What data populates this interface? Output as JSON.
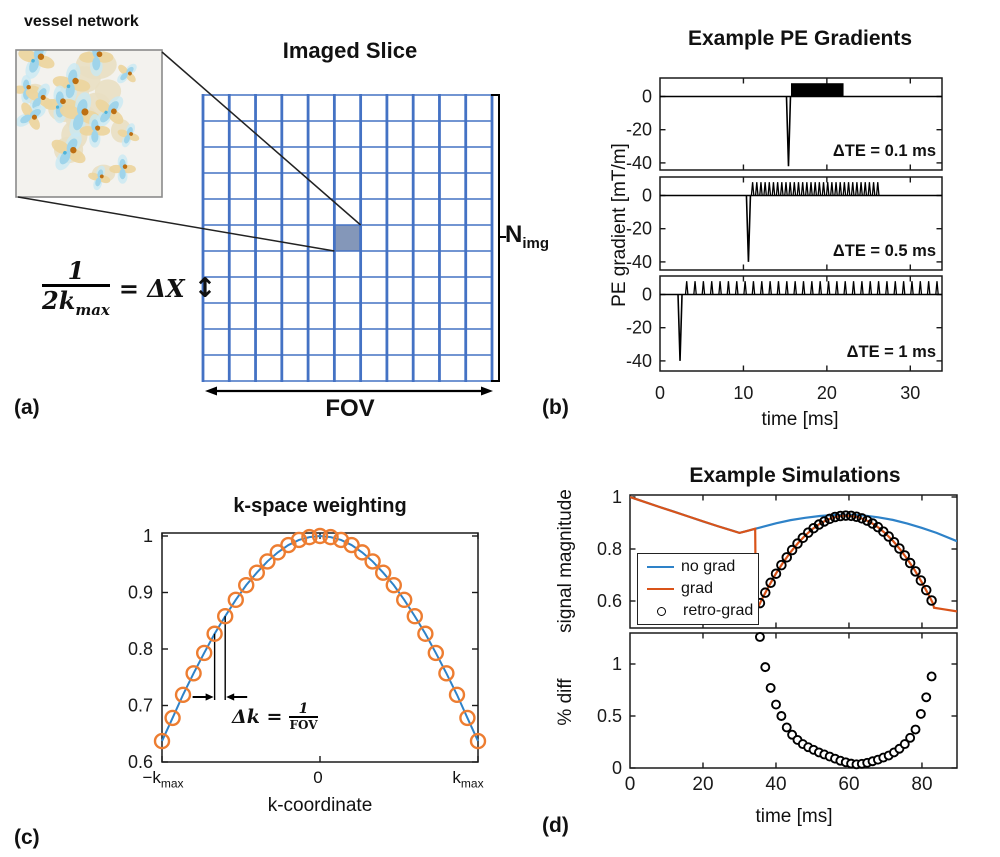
{
  "figure": {
    "panel_labels": {
      "a": "(a)",
      "b": "(b)",
      "c": "(c)",
      "d": "(d)"
    }
  },
  "panel_a": {
    "inset_label": "vessel network",
    "title": "Imaged Slice",
    "fov_label": "FOV",
    "n_img": {
      "base": "N",
      "sub": "img"
    },
    "equation": {
      "numerator": "1",
      "denominator_base": "2k",
      "denominator_sub": "max",
      "rhs": "= ΔX",
      "arrow": "↕"
    },
    "grid": {
      "rows": 11,
      "cols": 11,
      "highlight_cell": {
        "row": 6,
        "col": 6
      },
      "line_color": "#4472C4",
      "cell_fill": "#8497B9"
    },
    "inset_colors": {
      "background": "#f3f2ee",
      "network": "#e9dfc2",
      "petal_blue": "#9fd4ea",
      "petal_blue_halo": "#c9e9f3",
      "petal_tan": "#ecd59f",
      "dot_brown": "#bd6f12",
      "dot_blue": "#4fb3d9"
    },
    "vessels": [
      [
        0.14,
        0.06,
        1.0,
        20
      ],
      [
        0.55,
        0.05,
        0.9,
        0
      ],
      [
        0.76,
        0.16,
        0.6,
        45
      ],
      [
        0.38,
        0.23,
        1.0,
        10
      ],
      [
        0.07,
        0.27,
        0.7,
        0
      ],
      [
        0.16,
        0.33,
        0.8,
        30
      ],
      [
        0.3,
        0.37,
        0.9,
        0
      ],
      [
        0.1,
        0.45,
        0.8,
        60
      ],
      [
        0.44,
        0.44,
        1.1,
        15
      ],
      [
        0.64,
        0.42,
        0.9,
        40
      ],
      [
        0.54,
        0.55,
        0.8,
        0
      ],
      [
        0.77,
        0.58,
        0.6,
        20
      ],
      [
        0.36,
        0.69,
        1.0,
        30
      ],
      [
        0.73,
        0.81,
        0.7,
        0
      ],
      [
        0.57,
        0.87,
        0.6,
        15
      ]
    ]
  },
  "chart_data": [
    {
      "id": "pe_gradients",
      "type": "line",
      "title": "Example PE Gradients",
      "xlabel": "time  [ms]",
      "ylabel": "PE gradient  [mT/m]",
      "xlim": [
        0,
        33.8
      ],
      "ylim": [
        -45,
        11
      ],
      "x_ticks": [
        0,
        10,
        20,
        30
      ],
      "y_ticks": [
        0,
        -20,
        -40
      ],
      "subplots": [
        {
          "annotation": "ΔTE = 0.1 ms",
          "prewinder": {
            "t": 15.4,
            "amp": -42
          },
          "train": {
            "start": 15.7,
            "end": 22.0,
            "period": 0.1,
            "amp": 8,
            "rendered_solid": true
          }
        },
        {
          "annotation": "ΔTE = 0.5 ms",
          "prewinder": {
            "t": 10.6,
            "amp": -40
          },
          "train": {
            "start": 11.1,
            "end": 26.2,
            "period": 0.5,
            "amp": 8,
            "rendered_solid": false
          }
        },
        {
          "annotation": "ΔTE = 1 ms",
          "prewinder": {
            "t": 2.4,
            "amp": -40
          },
          "train": {
            "start": 3.2,
            "end": 33.5,
            "period": 1.0,
            "amp": 8,
            "rendered_solid": false
          }
        }
      ]
    },
    {
      "id": "kspace_weighting",
      "type": "line+scatter",
      "title": "k-space weighting",
      "xlabel": "k-coordinate",
      "xlim": [
        -1,
        1
      ],
      "ylim": [
        0.6,
        1.005
      ],
      "y_ticks": [
        1,
        0.9,
        0.8,
        0.7,
        0.6
      ],
      "x_tick_labels": [
        {
          "base": "−k",
          "sub": "max"
        },
        {
          "base": "0",
          "sub": ""
        },
        {
          "base": "k",
          "sub": "max"
        }
      ],
      "line_color": "#2E82C8",
      "marker_color": "#ED7D31",
      "annotation": {
        "lhs": "Δk =",
        "num": "1",
        "den": "FOV"
      },
      "points_k": [
        -1,
        -0.933,
        -0.867,
        -0.8,
        -0.733,
        -0.667,
        -0.6,
        -0.533,
        -0.467,
        -0.4,
        -0.333,
        -0.267,
        -0.2,
        -0.133,
        -0.067,
        0,
        0.067,
        0.133,
        0.2,
        0.267,
        0.333,
        0.4,
        0.467,
        0.533,
        0.6,
        0.667,
        0.733,
        0.8,
        0.867,
        0.933,
        1
      ],
      "points_w": [
        0.637,
        0.678,
        0.719,
        0.757,
        0.793,
        0.827,
        0.858,
        0.887,
        0.913,
        0.935,
        0.955,
        0.971,
        0.984,
        0.993,
        0.998,
        1.0,
        0.998,
        0.993,
        0.984,
        0.971,
        0.955,
        0.935,
        0.913,
        0.887,
        0.858,
        0.827,
        0.793,
        0.757,
        0.719,
        0.678,
        0.637
      ]
    },
    {
      "id": "simulations",
      "type": "line+scatter",
      "title": "Example Simulations",
      "xlabel": "time  [ms]",
      "xlim": [
        0,
        89.6
      ],
      "x_ticks": [
        0,
        20,
        40,
        60,
        80
      ],
      "subplots": [
        {
          "ylabel": "signal magnitude",
          "ylim": [
            0.496,
            1.008
          ],
          "y_ticks": [
            1,
            0.8,
            0.6
          ],
          "legend": [
            {
              "label": "no grad",
              "color": "#2E82C8",
              "marker": "line"
            },
            {
              "label": "grad",
              "color": "#D95319",
              "marker": "line"
            },
            {
              "label": "retro-grad",
              "color": "#000000",
              "marker": "circle"
            }
          ],
          "series": {
            "no_grad": [
              [
                0,
                1.0
              ],
              [
                4,
                0.981
              ],
              [
                8,
                0.962
              ],
              [
                12,
                0.944
              ],
              [
                16,
                0.925
              ],
              [
                20,
                0.906
              ],
              [
                24,
                0.888
              ],
              [
                28,
                0.871
              ],
              [
                30,
                0.862
              ],
              [
                33,
                0.873
              ],
              [
                36,
                0.884
              ],
              [
                40,
                0.899
              ],
              [
                44,
                0.911
              ],
              [
                48,
                0.92
              ],
              [
                52,
                0.927
              ],
              [
                56,
                0.931
              ],
              [
                60,
                0.932
              ],
              [
                64,
                0.929
              ],
              [
                68,
                0.922
              ],
              [
                72,
                0.912
              ],
              [
                76,
                0.898
              ],
              [
                80,
                0.881
              ],
              [
                84,
                0.862
              ],
              [
                89.6,
                0.83
              ]
            ],
            "grad": [
              [
                0,
                1.0
              ],
              [
                8,
                0.962
              ],
              [
                16,
                0.925
              ],
              [
                24,
                0.888
              ],
              [
                30,
                0.862
              ],
              [
                32,
                0.869
              ],
              [
                34.3,
                0.878
              ],
              [
                34.5,
                0.556
              ],
              [
                36,
                0.603
              ],
              [
                38,
                0.656
              ],
              [
                40,
                0.706
              ],
              [
                42,
                0.749
              ],
              [
                44,
                0.788
              ],
              [
                46,
                0.822
              ],
              [
                48,
                0.852
              ],
              [
                50,
                0.877
              ],
              [
                52,
                0.897
              ],
              [
                54,
                0.912
              ],
              [
                56,
                0.922
              ],
              [
                58,
                0.928
              ],
              [
                60,
                0.928
              ],
              [
                62,
                0.924
              ],
              [
                64,
                0.915
              ],
              [
                66,
                0.902
              ],
              [
                68,
                0.883
              ],
              [
                70,
                0.86
              ],
              [
                72,
                0.832
              ],
              [
                74,
                0.799
              ],
              [
                76,
                0.761
              ],
              [
                78,
                0.719
              ],
              [
                80,
                0.671
              ],
              [
                82,
                0.619
              ],
              [
                83,
                0.591
              ],
              [
                83.3,
                0.574
              ],
              [
                86,
                0.568
              ],
              [
                89.6,
                0.56
              ]
            ],
            "retro_grad": {
              "t_start": 35.6,
              "t_step": 1.47,
              "values": [
                0.592,
                0.632,
                0.67,
                0.705,
                0.738,
                0.768,
                0.796,
                0.821,
                0.843,
                0.863,
                0.88,
                0.894,
                0.906,
                0.916,
                0.923,
                0.927,
                0.9285,
                0.9275,
                0.924,
                0.918,
                0.909,
                0.898,
                0.884,
                0.867,
                0.848,
                0.826,
                0.802,
                0.775,
                0.746,
                0.714,
                0.679,
                0.642,
                0.602
              ]
            }
          }
        },
        {
          "ylabel": "% diff",
          "ylim": [
            0,
            1.3
          ],
          "y_ticks": [
            0,
            0.5,
            1
          ],
          "points": {
            "t_start": 35.6,
            "t_step": 1.47,
            "values": [
              1.26,
              0.97,
              0.77,
              0.61,
              0.5,
              0.39,
              0.32,
              0.27,
              0.23,
              0.2,
              0.175,
              0.15,
              0.13,
              0.11,
              0.09,
              0.07,
              0.055,
              0.042,
              0.035,
              0.04,
              0.05,
              0.065,
              0.08,
              0.1,
              0.12,
              0.15,
              0.185,
              0.23,
              0.29,
              0.37,
              0.52,
              0.68,
              0.88
            ]
          }
        }
      ]
    }
  ]
}
